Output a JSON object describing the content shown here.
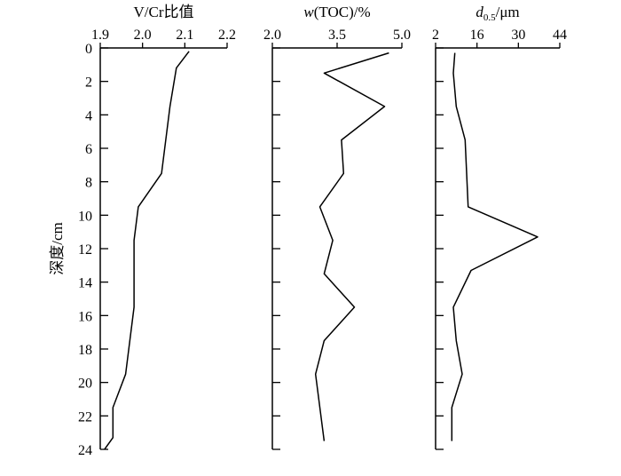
{
  "chart_data": {
    "type": "line",
    "shared_axis": {
      "label": "深度/cm",
      "ylim": [
        0,
        24
      ],
      "ticks": [
        0,
        2,
        4,
        6,
        8,
        10,
        12,
        14,
        16,
        18,
        20,
        22,
        24
      ]
    },
    "panels": [
      {
        "title": "V/Cr比值",
        "xlim": [
          1.9,
          2.2
        ],
        "xticks": [
          "1.9",
          "2.0",
          "2.1",
          "2.2"
        ],
        "series": [
          {
            "depth": [
              0.2,
              1.2,
              3.5,
              7.5,
              9.5,
              11.5,
              15.5,
              19.5,
              21.5,
              23.3,
              24
            ],
            "values": [
              2.11,
              2.08,
              2.065,
              2.045,
              1.99,
              1.98,
              1.98,
              1.96,
              1.93,
              1.93,
              1.91
            ]
          }
        ]
      },
      {
        "title": "w(TOC)/%",
        "xlim": [
          2.0,
          5.0
        ],
        "xticks": [
          "2.0",
          "3.5",
          "5.0"
        ],
        "series": [
          {
            "depth": [
              0.3,
              1.5,
              3.5,
              5.5,
              7.5,
              9.5,
              11.5,
              13.5,
              15.5,
              17.5,
              19.5,
              23.5
            ],
            "values": [
              4.7,
              3.2,
              4.6,
              3.6,
              3.65,
              3.1,
              3.4,
              3.2,
              3.9,
              3.2,
              3.0,
              3.2
            ]
          }
        ]
      },
      {
        "title": "d0.5/μm",
        "xlim": [
          2,
          44
        ],
        "xticks": [
          "2",
          "16",
          "30",
          "44"
        ],
        "series": [
          {
            "depth": [
              0.3,
              1.5,
              3.5,
              5.5,
              9.5,
              11.3,
              13.3,
              15.5,
              17.5,
              19.5,
              21.5,
              23.5
            ],
            "values": [
              8.5,
              8.0,
              9.0,
              12.0,
              13.0,
              36.5,
              14.0,
              8.0,
              9.0,
              11.0,
              7.5,
              7.5
            ]
          }
        ]
      }
    ]
  }
}
